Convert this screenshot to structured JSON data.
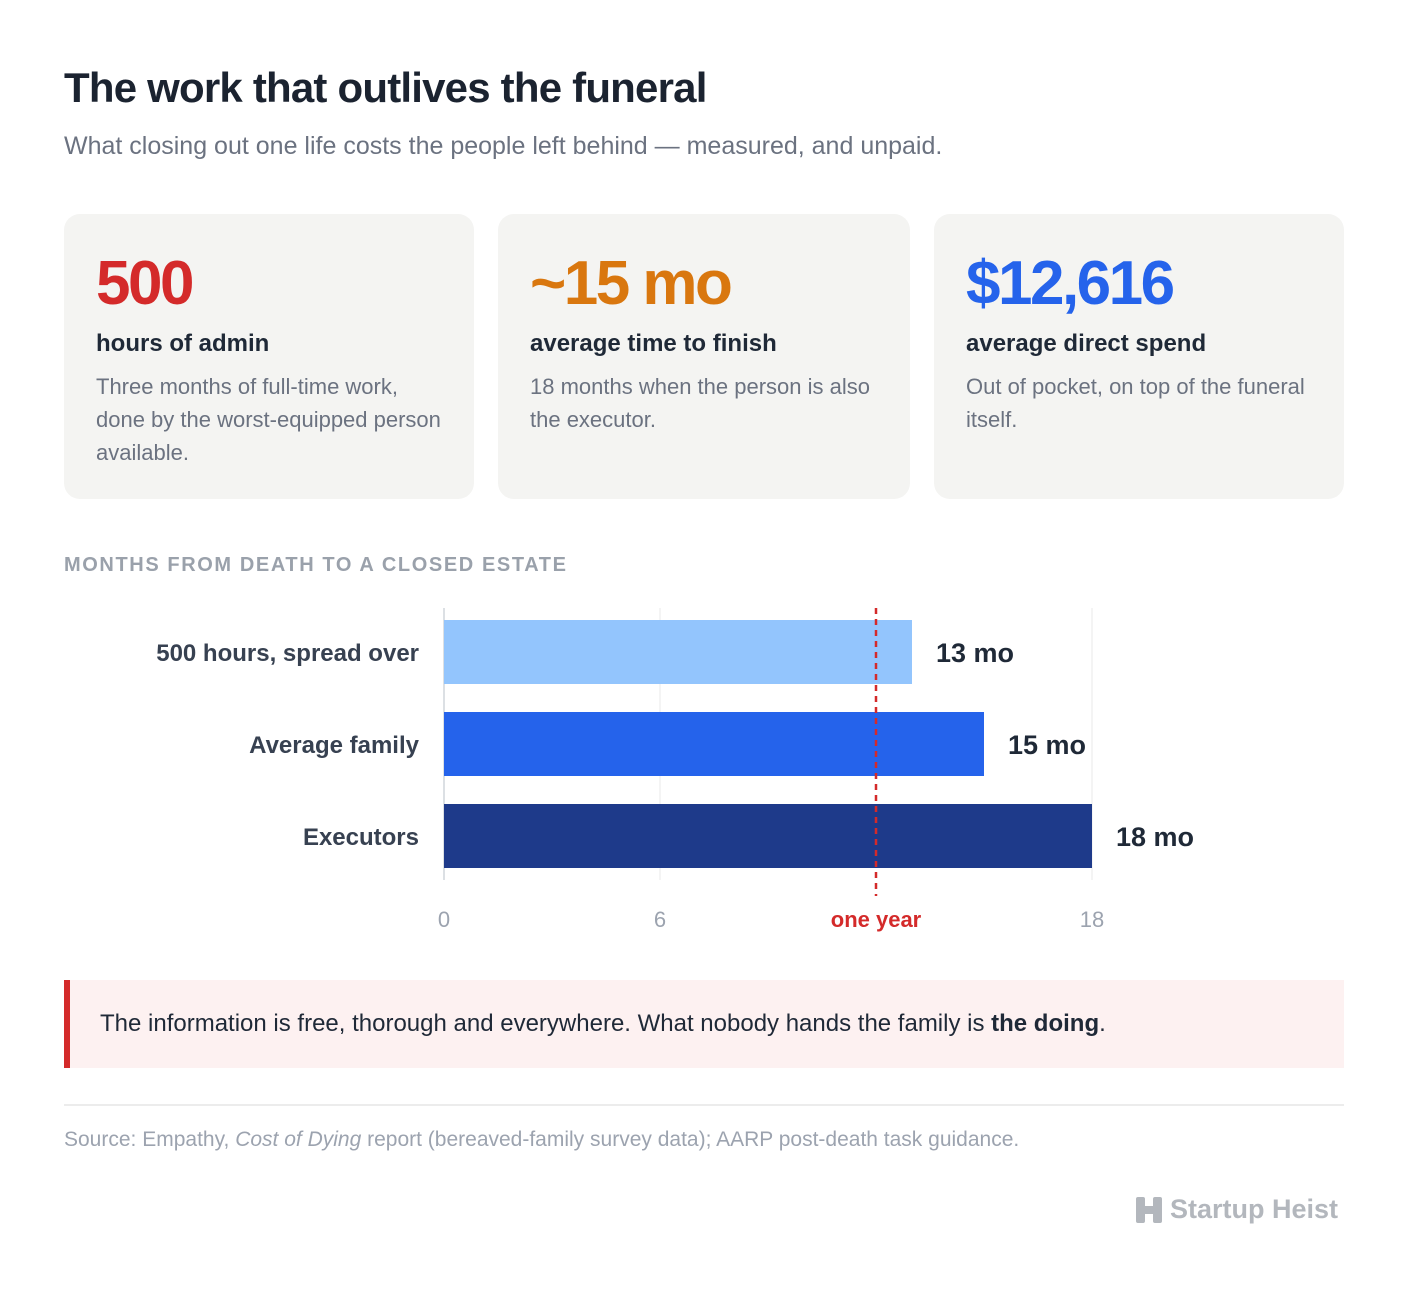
{
  "header": {
    "title": "The work that outlives the funeral",
    "subtitle": "What closing out one life costs the people left behind — measured, and unpaid."
  },
  "cards": [
    {
      "value": "500",
      "label": "hours of admin",
      "description": "Three months of full-time work, done by the worst-equipped person available.",
      "color": "#d42a2a"
    },
    {
      "value": "~15 mo",
      "label": "average time to finish",
      "description": "18 months when the person is also the executor.",
      "color": "#d9770f"
    },
    {
      "value": "$12,616",
      "label": "average direct spend",
      "description": "Out of pocket, on top of the funeral itself.",
      "color": "#2563eb"
    }
  ],
  "chart_data": {
    "type": "bar",
    "orientation": "horizontal",
    "title": "MONTHS FROM DEATH TO A CLOSED ESTATE",
    "categories": [
      "500 hours, spread over",
      "Average family",
      "Executors"
    ],
    "values": [
      13,
      15,
      18
    ],
    "value_labels": [
      "13 mo",
      "15 mo",
      "18 mo"
    ],
    "colors": [
      "#93c5fd",
      "#2563eb",
      "#1e3a8a"
    ],
    "xlim": [
      0,
      18
    ],
    "ticks": [
      {
        "value": 0,
        "label": "0"
      },
      {
        "value": 6,
        "label": "6"
      },
      {
        "value": 12,
        "label": "one year"
      },
      {
        "value": 18,
        "label": "18"
      }
    ],
    "reference_line": {
      "value": 12,
      "label": "one year",
      "color": "#d42a2a"
    },
    "grid": true
  },
  "callout": {
    "text": "The information is free, thorough and everywhere. What nobody hands the family is ",
    "emphasis": "the doing",
    "end": "."
  },
  "source": {
    "prefix": "Source: Empathy, ",
    "title": "Cost of Dying",
    "suffix": " report (bereaved-family survey data); AARP post-death task guidance."
  },
  "brand": {
    "name": "Startup Heist",
    "icon": "startup-heist-logo-icon"
  }
}
